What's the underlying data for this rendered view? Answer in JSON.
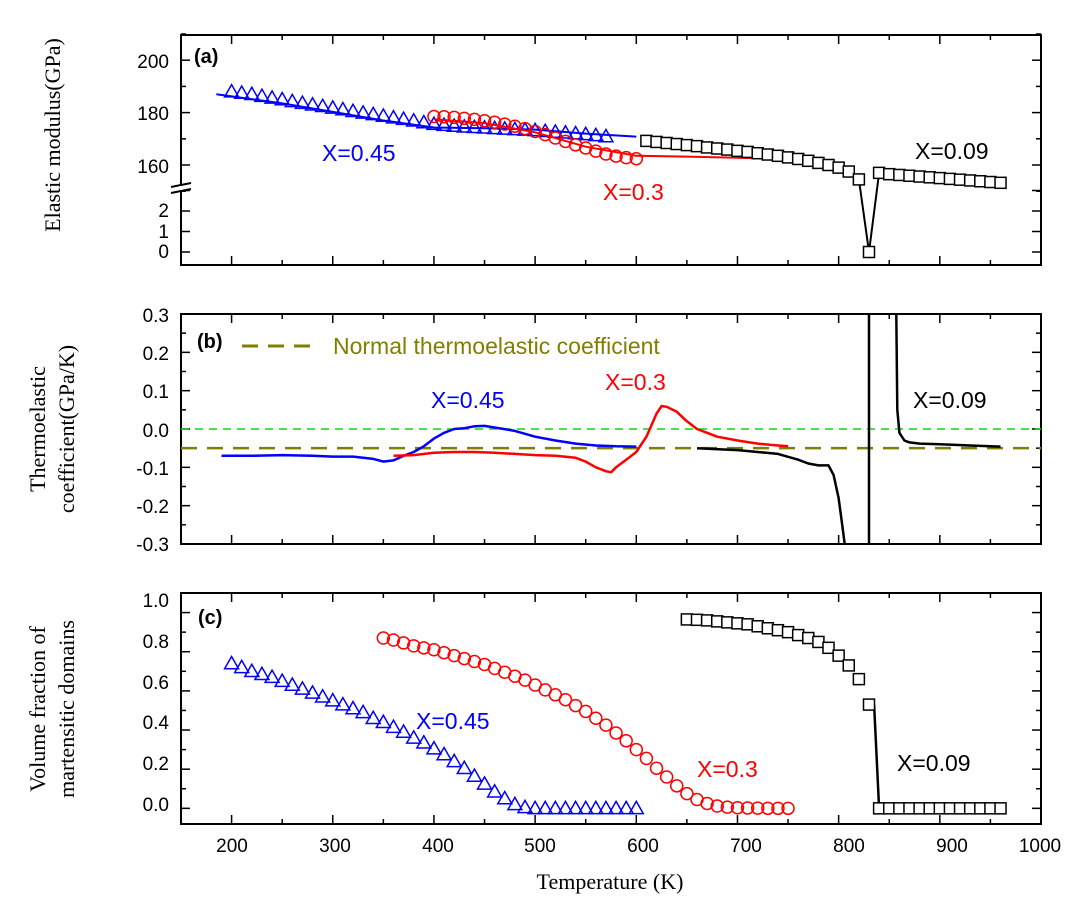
{
  "chart_data": [
    {
      "panel": "(a)",
      "type": "scatter",
      "ylabel": "Elastic modulus(GPa)",
      "xlim": [
        150,
        1000
      ],
      "ylim_upper": [
        145,
        210
      ],
      "ylim_lower": [
        0,
        3
      ],
      "yticks_upper": [
        160,
        180,
        200
      ],
      "yticks_lower": [
        0,
        1,
        2
      ],
      "series": [
        {
          "name": "X=0.45",
          "color": "#0000ff",
          "marker": "triangle",
          "x": [
            200,
            210,
            220,
            230,
            240,
            250,
            260,
            270,
            280,
            290,
            300,
            310,
            320,
            330,
            340,
            350,
            360,
            370,
            380,
            390,
            400,
            410,
            420,
            430,
            440,
            450,
            460,
            470,
            480,
            490,
            500,
            510,
            520,
            530,
            540,
            550,
            560,
            570
          ],
          "y": [
            188,
            187.5,
            187,
            186.3,
            185.6,
            185,
            184.3,
            183.6,
            183,
            182.4,
            181.8,
            181.2,
            180.5,
            179.9,
            179.3,
            178.7,
            178.1,
            177.5,
            176.9,
            176.2,
            175.6,
            175.2,
            174.9,
            174.6,
            174.4,
            174.2,
            174,
            173.8,
            173.6,
            173.4,
            173.2,
            172.9,
            172.6,
            172.3,
            172,
            171.7,
            171.3,
            170.9
          ],
          "fit_x": [
            185,
            250,
            300,
            350,
            400,
            450,
            500,
            550,
            600
          ],
          "fit_y": [
            187,
            183.5,
            180.3,
            177,
            174.3,
            174,
            173.5,
            172,
            170.8
          ]
        },
        {
          "name": "X=0.3",
          "color": "#ff0000",
          "marker": "circle",
          "x": [
            400,
            410,
            420,
            430,
            440,
            450,
            460,
            470,
            480,
            490,
            500,
            510,
            520,
            530,
            540,
            550,
            560,
            570,
            580,
            590,
            600
          ],
          "y": [
            178.5,
            178.4,
            178.2,
            177.8,
            177.4,
            176.9,
            176.3,
            175.6,
            174.8,
            173.9,
            172.8,
            171.6,
            170.3,
            169,
            167.7,
            166.5,
            165.3,
            164.2,
            163.4,
            162.8,
            162.4
          ],
          "fit_x": [
            400,
            450,
            500,
            550,
            600,
            650,
            700,
            750
          ],
          "fit_y": [
            177.5,
            176,
            172.5,
            167,
            163.5,
            163.2,
            162.8,
            162.4
          ]
        },
        {
          "name": "X=0.09",
          "color": "#000000",
          "marker": "square",
          "x": [
            610,
            620,
            630,
            640,
            650,
            660,
            670,
            680,
            690,
            700,
            710,
            720,
            730,
            740,
            750,
            760,
            770,
            780,
            790,
            800,
            810,
            820,
            830,
            840,
            850,
            860,
            870,
            880,
            890,
            900,
            910,
            920,
            930,
            940,
            950,
            960
          ],
          "y": [
            169.2,
            168.8,
            168.4,
            168,
            167.6,
            167.2,
            166.7,
            166.3,
            165.9,
            165.4,
            165,
            164.5,
            164,
            163.5,
            162.9,
            162.3,
            161.6,
            160.8,
            160,
            159,
            157.5,
            154.5,
            0,
            157,
            156.5,
            156.2,
            155.9,
            155.6,
            155.3,
            155,
            154.7,
            154.4,
            154.1,
            153.8,
            153.5,
            153.2
          ]
        }
      ]
    },
    {
      "panel": "(b)",
      "type": "line",
      "ylabel": "Thermoelastic coefficient(GPa/K)",
      "xlim": [
        150,
        1000
      ],
      "ylim": [
        -0.3,
        0.3
      ],
      "yticks": [
        -0.3,
        -0.2,
        -0.1,
        0.0,
        0.1,
        0.2,
        0.3
      ],
      "reference_lines": [
        {
          "name": "Normal thermoelastic coefficient",
          "y": -0.05,
          "color": "#7f7f00",
          "style": "dashed"
        },
        {
          "y": 0.0,
          "color": "#00e000",
          "style": "dashed"
        }
      ],
      "series": [
        {
          "name": "X=0.45",
          "color": "#0000ff",
          "x": [
            190,
            220,
            250,
            280,
            300,
            320,
            340,
            350,
            360,
            370,
            380,
            390,
            400,
            410,
            420,
            430,
            440,
            450,
            460,
            480,
            500,
            520,
            540,
            560,
            580,
            600
          ],
          "y": [
            -0.07,
            -0.07,
            -0.068,
            -0.07,
            -0.072,
            -0.072,
            -0.078,
            -0.085,
            -0.082,
            -0.07,
            -0.06,
            -0.045,
            -0.025,
            -0.01,
            0.0,
            0.002,
            0.007,
            0.008,
            0.004,
            -0.005,
            -0.02,
            -0.03,
            -0.038,
            -0.043,
            -0.045,
            -0.046
          ]
        },
        {
          "name": "X=0.3",
          "color": "#ff0000",
          "x": [
            360,
            380,
            400,
            420,
            440,
            460,
            480,
            500,
            520,
            540,
            550,
            560,
            570,
            575,
            580,
            590,
            600,
            610,
            620,
            625,
            630,
            640,
            650,
            660,
            670,
            680,
            700,
            720,
            740,
            750
          ],
          "y": [
            -0.07,
            -0.068,
            -0.062,
            -0.06,
            -0.06,
            -0.062,
            -0.065,
            -0.068,
            -0.07,
            -0.075,
            -0.085,
            -0.1,
            -0.11,
            -0.113,
            -0.1,
            -0.08,
            -0.06,
            -0.02,
            0.04,
            0.06,
            0.058,
            0.045,
            0.02,
            0.0,
            -0.01,
            -0.02,
            -0.03,
            -0.038,
            -0.043,
            -0.045
          ]
        },
        {
          "name": "X=0.09",
          "color": "#000000",
          "x": [
            660,
            700,
            740,
            760,
            770,
            780,
            790,
            795,
            800,
            803,
            806
          ],
          "y": [
            -0.05,
            -0.055,
            -0.065,
            -0.08,
            -0.09,
            -0.095,
            -0.095,
            -0.12,
            -0.18,
            -0.24,
            -0.3
          ],
          "x2": [
            830,
            830
          ],
          "y2": [
            -0.3,
            0.3
          ],
          "x3": [
            857,
            858,
            860,
            865,
            870,
            880,
            900,
            930,
            960
          ],
          "y3": [
            0.3,
            0.05,
            -0.01,
            -0.03,
            -0.035,
            -0.038,
            -0.04,
            -0.043,
            -0.046
          ]
        }
      ]
    },
    {
      "panel": "(c)",
      "type": "scatter",
      "ylabel": "Volume fraction of martensitic domains",
      "xlabel": "Temperature (K)",
      "xlim": [
        150,
        1000
      ],
      "ylim": [
        -0.08,
        1.1
      ],
      "xticks": [
        200,
        300,
        400,
        500,
        600,
        700,
        800,
        900,
        1000
      ],
      "yticks": [
        0.0,
        0.2,
        0.4,
        0.6,
        0.8,
        1.0
      ],
      "series": [
        {
          "name": "X=0.45",
          "color": "#0000ff",
          "marker": "triangle",
          "x": [
            200,
            210,
            220,
            230,
            240,
            250,
            260,
            270,
            280,
            290,
            300,
            310,
            320,
            330,
            340,
            350,
            360,
            370,
            380,
            390,
            400,
            410,
            420,
            430,
            440,
            450,
            460,
            470,
            480,
            490,
            500,
            510,
            520,
            530,
            540,
            550,
            560,
            570,
            580,
            590,
            600
          ],
          "y": [
            0.74,
            0.72,
            0.7,
            0.685,
            0.67,
            0.65,
            0.63,
            0.61,
            0.59,
            0.57,
            0.55,
            0.53,
            0.51,
            0.49,
            0.46,
            0.44,
            0.415,
            0.39,
            0.36,
            0.335,
            0.305,
            0.275,
            0.24,
            0.205,
            0.165,
            0.125,
            0.085,
            0.05,
            0.02,
            0.005,
            0.0,
            0.0,
            0.0,
            0.0,
            0.0,
            0.0,
            0.0,
            0.0,
            0.0,
            0.0,
            0.0
          ]
        },
        {
          "name": "X=0.3",
          "color": "#ff0000",
          "marker": "circle",
          "x": [
            350,
            360,
            370,
            380,
            390,
            400,
            410,
            420,
            430,
            440,
            450,
            460,
            470,
            480,
            490,
            500,
            510,
            520,
            530,
            540,
            550,
            560,
            570,
            580,
            590,
            600,
            610,
            620,
            630,
            640,
            650,
            660,
            670,
            680,
            690,
            700,
            710,
            720,
            730,
            740,
            750
          ],
          "y": [
            0.87,
            0.86,
            0.845,
            0.83,
            0.82,
            0.81,
            0.795,
            0.78,
            0.765,
            0.75,
            0.735,
            0.715,
            0.695,
            0.675,
            0.655,
            0.63,
            0.605,
            0.58,
            0.555,
            0.525,
            0.495,
            0.46,
            0.425,
            0.385,
            0.345,
            0.3,
            0.255,
            0.205,
            0.16,
            0.115,
            0.075,
            0.045,
            0.025,
            0.012,
            0.006,
            0.003,
            0.002,
            0.001,
            0.0,
            0.0,
            0.0
          ]
        },
        {
          "name": "X=0.09",
          "color": "#000000",
          "marker": "square",
          "x": [
            650,
            660,
            670,
            680,
            690,
            700,
            710,
            720,
            730,
            740,
            750,
            760,
            770,
            780,
            790,
            800,
            810,
            820,
            830,
            840,
            850,
            860,
            870,
            880,
            890,
            900,
            910,
            920,
            930,
            940,
            950,
            960
          ],
          "y": [
            0.965,
            0.963,
            0.96,
            0.955,
            0.95,
            0.945,
            0.94,
            0.93,
            0.92,
            0.91,
            0.9,
            0.885,
            0.87,
            0.85,
            0.82,
            0.78,
            0.73,
            0.66,
            0.53,
            0.0,
            0.0,
            0.0,
            0.0,
            0.0,
            0.0,
            0.0,
            0.0,
            0.0,
            0.0,
            0.0,
            0.0,
            0.0
          ],
          "line_x": [
            835,
            840
          ],
          "line_y": [
            0.53,
            0.0
          ]
        }
      ]
    }
  ],
  "texts": {
    "a": {
      "panel_label": "(a)",
      "ylabel": "Elastic modulus(GPa)",
      "label_045": "X=0.45",
      "label_03": "X=0.3",
      "label_009": "X=0.09",
      "yticks_upper": [
        "160",
        "180",
        "200"
      ],
      "yticks_lower": [
        "0",
        "1",
        "2"
      ]
    },
    "b": {
      "panel_label": "(b)",
      "ylabel_line1": "Thermoelastic",
      "ylabel_line2": "coefficient(GPa/K)",
      "legend": "Normal thermoelastic coefficient",
      "label_045": "X=0.45",
      "label_03": "X=0.3",
      "label_009": "X=0.09",
      "yticks": [
        "-0.3",
        "-0.2",
        "-0.1",
        "0.0",
        "0.1",
        "0.2",
        "0.3"
      ]
    },
    "c": {
      "panel_label": "(c)",
      "ylabel_line1": "Volume fraction of",
      "ylabel_line2": "martensitic domains",
      "label_045": "X=0.45",
      "label_03": "X=0.3",
      "label_009": "X=0.09",
      "yticks": [
        "0.0",
        "0.2",
        "0.4",
        "0.6",
        "0.8",
        "1.0"
      ],
      "xticks": [
        "200",
        "300",
        "400",
        "500",
        "600",
        "700",
        "800",
        "900",
        "1000"
      ],
      "xlabel": "Temperature (K)"
    }
  }
}
